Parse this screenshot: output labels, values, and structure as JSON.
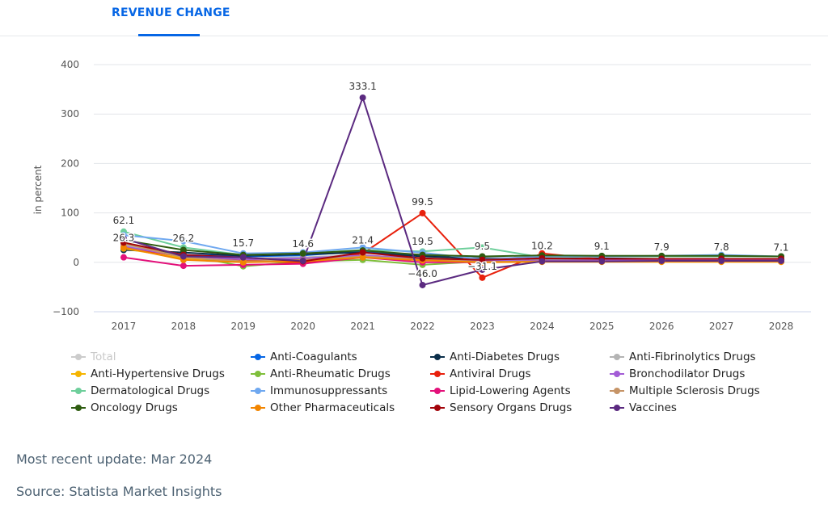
{
  "tab": {
    "label": "REVENUE CHANGE"
  },
  "footer": {
    "update": "Most recent update: Mar 2024",
    "source": "Source: Statista Market Insights"
  },
  "chart_data": {
    "type": "line",
    "title": "",
    "xlabel": "",
    "ylabel": "in percent",
    "ylim": [
      -100,
      400
    ],
    "yticks": [
      -100,
      0,
      100,
      200,
      300,
      400
    ],
    "grid": "horizontal",
    "legend_position": "bottom",
    "categories": [
      "2017",
      "2018",
      "2019",
      "2020",
      "2021",
      "2022",
      "2023",
      "2024",
      "2025",
      "2026",
      "2027",
      "2028"
    ],
    "annotations": [
      {
        "x": "2017",
        "label": "62.1",
        "y": 62.1
      },
      {
        "x": "2017",
        "label": "26.3",
        "y": 26.3
      },
      {
        "x": "2018",
        "label": "26.2",
        "y": 26.2
      },
      {
        "x": "2019",
        "label": "15.7",
        "y": 15.7
      },
      {
        "x": "2020",
        "label": "14.6",
        "y": 14.6
      },
      {
        "x": "2021",
        "label": "21.4",
        "y": 21.4
      },
      {
        "x": "2021",
        "label": "333.1",
        "y": 333.1
      },
      {
        "x": "2022",
        "label": "99.5",
        "y": 99.5
      },
      {
        "x": "2022",
        "label": "19.5",
        "y": 19.5
      },
      {
        "x": "2022",
        "label": "-46.0",
        "y": -46.0
      },
      {
        "x": "2023",
        "label": "9.5",
        "y": 9.5
      },
      {
        "x": "2023",
        "label": "-31.1",
        "y": -31.1
      },
      {
        "x": "2024",
        "label": "10.2",
        "y": 10.2
      },
      {
        "x": "2025",
        "label": "9.1",
        "y": 9.1
      },
      {
        "x": "2026",
        "label": "7.9",
        "y": 7.9
      },
      {
        "x": "2027",
        "label": "7.8",
        "y": 7.8
      },
      {
        "x": "2028",
        "label": "7.1",
        "y": 7.1
      }
    ],
    "series": [
      {
        "name": "Total",
        "color": "#cccccc",
        "visible": false,
        "values": [
          26.3,
          26.2,
          15.7,
          14.6,
          21.4,
          19.5,
          9.5,
          10.2,
          9.1,
          7.9,
          7.8,
          7.1
        ]
      },
      {
        "name": "Anti-Coagulants",
        "color": "#0666e5",
        "visible": true,
        "values": [
          30,
          15,
          12,
          14,
          22,
          15,
          5,
          8,
          7,
          7,
          6,
          6
        ]
      },
      {
        "name": "Anti-Diabetes Drugs",
        "color": "#0a2e4a",
        "visible": true,
        "values": [
          25,
          20,
          13,
          16,
          20,
          12,
          8,
          9,
          8,
          7,
          7,
          6
        ]
      },
      {
        "name": "Anti-Fibrinolytics Drugs",
        "color": "#b4b4b4",
        "visible": true,
        "values": [
          35,
          10,
          8,
          10,
          15,
          5,
          4,
          5,
          5,
          5,
          5,
          4
        ]
      },
      {
        "name": "Anti-Hypertensive Drugs",
        "color": "#f5b400",
        "visible": true,
        "values": [
          28,
          8,
          3,
          5,
          12,
          8,
          2,
          3,
          3,
          3,
          3,
          3
        ]
      },
      {
        "name": "Anti-Rheumatic Drugs",
        "color": "#7fbf3b",
        "visible": true,
        "values": [
          40,
          15,
          -8,
          2,
          5,
          -5,
          2,
          6,
          6,
          6,
          6,
          6
        ]
      },
      {
        "name": "Antiviral Drugs",
        "color": "#e8200c",
        "visible": true,
        "values": [
          30,
          12,
          5,
          -2,
          18,
          99.5,
          -31.1,
          18,
          6,
          5,
          5,
          5
        ]
      },
      {
        "name": "Bronchodilator Drugs",
        "color": "#a35cd6",
        "visible": true,
        "values": [
          32,
          12,
          6,
          8,
          14,
          8,
          3,
          4,
          4,
          4,
          4,
          4
        ]
      },
      {
        "name": "Dermatological Drugs",
        "color": "#6ecf9b",
        "visible": true,
        "values": [
          62.1,
          30,
          15,
          18,
          25,
          22,
          30,
          10,
          12,
          12,
          12,
          12
        ]
      },
      {
        "name": "Immunosuppressants",
        "color": "#6fa8f0",
        "visible": true,
        "values": [
          55,
          43,
          18,
          20,
          30,
          19.5,
          6,
          12,
          12,
          13,
          15,
          12
        ]
      },
      {
        "name": "Lipid-Lowering Agents",
        "color": "#e3117a",
        "visible": true,
        "values": [
          10,
          -7,
          -5,
          -3,
          10,
          0,
          0,
          2,
          2,
          2,
          2,
          2
        ]
      },
      {
        "name": "Multiple Sclerosis Drugs",
        "color": "#c69467",
        "visible": true,
        "values": [
          38,
          10,
          2,
          4,
          12,
          6,
          1,
          2,
          2,
          2,
          2,
          2
        ]
      },
      {
        "name": "Oncology Drugs",
        "color": "#2e5c10",
        "visible": true,
        "values": [
          45,
          25,
          15,
          18,
          24,
          15,
          12,
          14,
          13,
          13,
          13,
          12
        ]
      },
      {
        "name": "Other Pharmaceuticals",
        "color": "#f28500",
        "visible": true,
        "values": [
          30,
          5,
          0,
          2,
          10,
          4,
          0,
          1,
          1,
          1,
          1,
          1
        ]
      },
      {
        "name": "Sensory Organs Drugs",
        "color": "#a3040a",
        "visible": true,
        "values": [
          40,
          15,
          10,
          2,
          20,
          8,
          5,
          8,
          7,
          7,
          7,
          7
        ]
      },
      {
        "name": "Vaccines",
        "color": "#5b2a80",
        "visible": true,
        "values": [
          48,
          12,
          10,
          3,
          333.1,
          -46.0,
          -15,
          2,
          2,
          3,
          3,
          3
        ]
      }
    ]
  }
}
